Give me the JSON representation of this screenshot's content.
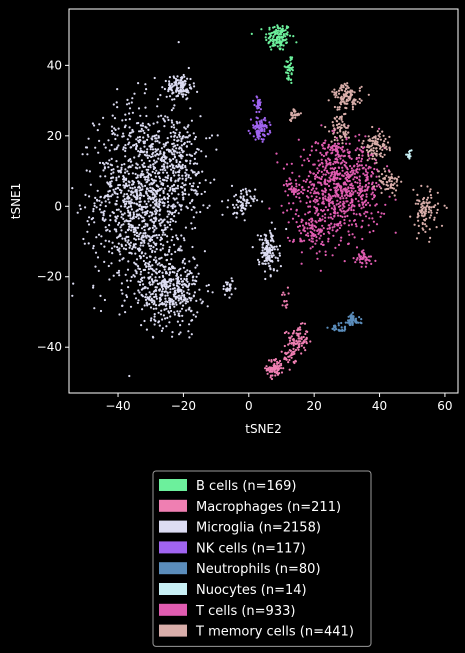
{
  "chart_data": {
    "type": "scatter",
    "xlabel": "tSNE2",
    "ylabel": "tSNE1",
    "xlim": [
      -55,
      64
    ],
    "ylim": [
      -53,
      56
    ],
    "xticks": [
      -40,
      -20,
      0,
      20,
      40,
      60
    ],
    "yticks": [
      -40,
      -20,
      0,
      20,
      40
    ],
    "xtick_labels": [
      "−40",
      "−20",
      "0",
      "20",
      "40",
      "60"
    ],
    "ytick_labels": [
      "−40",
      "−20",
      "0",
      "20",
      "40"
    ],
    "grid": false,
    "legend_placement": "below",
    "series": [
      {
        "name": "B cells (n=169)",
        "color": "#6cf09c",
        "clusters": [
          {
            "cx": 9,
            "cy": 48,
            "sx": 2.0,
            "sy": 2.0,
            "n": 130
          },
          {
            "cx": 12.5,
            "cy": 39,
            "sx": 0.7,
            "sy": 2.3,
            "n": 39
          }
        ]
      },
      {
        "name": "Macrophages (n=211)",
        "color": "#ef7fb2",
        "clusters": [
          {
            "cx": 15,
            "cy": -38,
            "sx": 1.6,
            "sy": 2.0,
            "n": 90
          },
          {
            "cx": 8,
            "cy": -46,
            "sx": 1.2,
            "sy": 1.3,
            "n": 80
          },
          {
            "cx": 11,
            "cy": -26,
            "sx": 0.5,
            "sy": 1.5,
            "n": 12
          },
          {
            "cx": 12,
            "cy": -43,
            "sx": 1.3,
            "sy": 1.2,
            "n": 29
          }
        ]
      },
      {
        "name": "Microglia (n=2158)",
        "color": "#dcdcf2",
        "clusters": [
          {
            "cx": -33,
            "cy": 2,
            "sx": 7.0,
            "sy": 13.0,
            "n": 1150
          },
          {
            "cx": -24,
            "cy": -24,
            "sx": 4.5,
            "sy": 5.0,
            "n": 400
          },
          {
            "cx": -21,
            "cy": 12,
            "sx": 4.0,
            "sy": 7.0,
            "n": 250
          },
          {
            "cx": -21,
            "cy": 34,
            "sx": 2.0,
            "sy": 1.8,
            "n": 120
          },
          {
            "cx": 6,
            "cy": -13,
            "sx": 1.5,
            "sy": 3.0,
            "n": 140
          },
          {
            "cx": -2,
            "cy": 1,
            "sx": 2.0,
            "sy": 2.0,
            "n": 70
          },
          {
            "cx": -6,
            "cy": -23,
            "sx": 1.2,
            "sy": 1.2,
            "n": 28
          }
        ]
      },
      {
        "name": "NK cells (n=117)",
        "color": "#a064f0",
        "clusters": [
          {
            "cx": 3.5,
            "cy": 22,
            "sx": 1.4,
            "sy": 1.5,
            "n": 87
          },
          {
            "cx": 3,
            "cy": 29,
            "sx": 0.6,
            "sy": 1.2,
            "n": 30
          }
        ]
      },
      {
        "name": "Neutrophils (n=80)",
        "color": "#5b8dbb",
        "clusters": [
          {
            "cx": 31.5,
            "cy": -32.5,
            "sx": 1.2,
            "sy": 0.9,
            "n": 55
          },
          {
            "cx": 28,
            "cy": -34.5,
            "sx": 1.8,
            "sy": 0.8,
            "n": 25
          }
        ]
      },
      {
        "name": "Nuocytes (n=14)",
        "color": "#c8f0f5",
        "clusters": [
          {
            "cx": 49,
            "cy": 14.5,
            "sx": 0.4,
            "sy": 0.6,
            "n": 14
          }
        ]
      },
      {
        "name": "T cells (n=933)",
        "color": "#e05cb0",
        "clusters": [
          {
            "cx": 28,
            "cy": 5,
            "sx": 6.5,
            "sy": 6.0,
            "n": 700
          },
          {
            "cx": 20,
            "cy": -7,
            "sx": 3.0,
            "sy": 3.5,
            "n": 110
          },
          {
            "cx": 35,
            "cy": -15,
            "sx": 1.2,
            "sy": 1.2,
            "n": 40
          },
          {
            "cx": 14,
            "cy": 5,
            "sx": 1.2,
            "sy": 1.5,
            "n": 35
          },
          {
            "cx": 26,
            "cy": 16,
            "sx": 2.5,
            "sy": 2.0,
            "n": 48
          }
        ]
      },
      {
        "name": "T memory cells (n=441)",
        "color": "#d9aeaa",
        "clusters": [
          {
            "cx": 30,
            "cy": 31,
            "sx": 2.2,
            "sy": 1.8,
            "n": 110
          },
          {
            "cx": 39,
            "cy": 17,
            "sx": 2.0,
            "sy": 2.0,
            "n": 90
          },
          {
            "cx": 54,
            "cy": -1.5,
            "sx": 2.0,
            "sy": 3.0,
            "n": 95
          },
          {
            "cx": 28,
            "cy": 22,
            "sx": 1.5,
            "sy": 2.0,
            "n": 60
          },
          {
            "cx": 43,
            "cy": 7,
            "sx": 1.8,
            "sy": 2.0,
            "n": 56
          },
          {
            "cx": 14,
            "cy": 26,
            "sx": 0.8,
            "sy": 0.8,
            "n": 30
          }
        ]
      }
    ]
  }
}
